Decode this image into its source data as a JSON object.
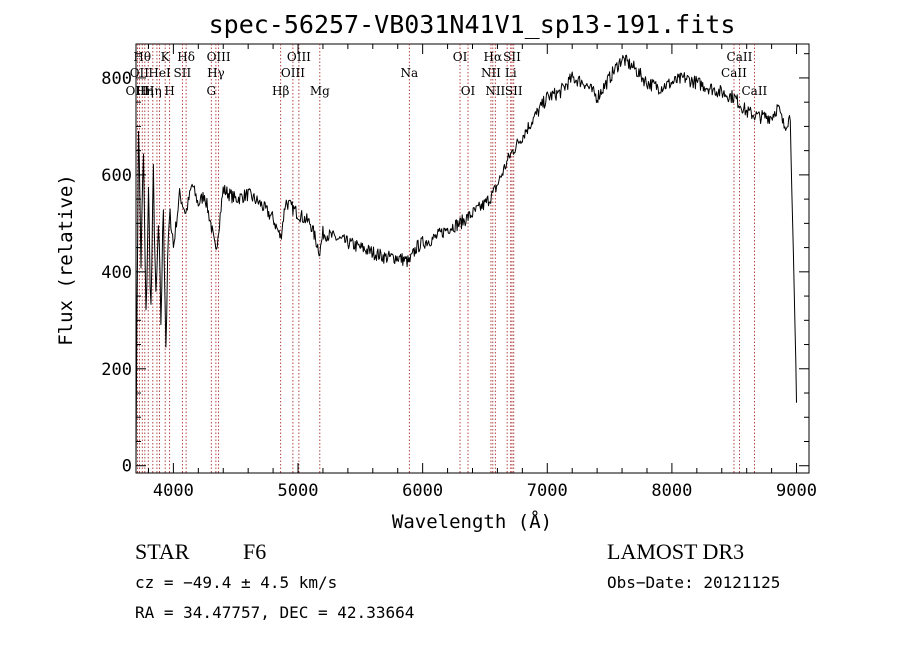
{
  "chart_data": {
    "type": "line",
    "title": "spec-56257-VB031N41V1_sp13-191.fits",
    "xlabel": "Wavelength (Å)",
    "ylabel": "Flux (relative)",
    "xlim": [
      3700,
      9100
    ],
    "ylim": [
      -15,
      870
    ],
    "xticks": [
      4000,
      5000,
      6000,
      7000,
      8000,
      9000
    ],
    "yticks": [
      0,
      200,
      400,
      600,
      800
    ],
    "line_color": "#000000",
    "marker_color": "#a01818",
    "series": [
      {
        "name": "flux",
        "x": [
          3700,
          3720,
          3740,
          3760,
          3780,
          3800,
          3820,
          3840,
          3860,
          3880,
          3900,
          3920,
          3940,
          3960,
          3980,
          4000,
          4050,
          4100,
          4150,
          4200,
          4250,
          4300,
          4340,
          4400,
          4500,
          4600,
          4700,
          4800,
          4861,
          4900,
          5000,
          5100,
          5175,
          5200,
          5300,
          5400,
          5500,
          5600,
          5700,
          5800,
          5893,
          5950,
          6000,
          6100,
          6200,
          6300,
          6400,
          6500,
          6563,
          6600,
          6650,
          6700,
          6800,
          6900,
          7000,
          7100,
          7200,
          7300,
          7400,
          7500,
          7600,
          7700,
          7800,
          7900,
          8000,
          8100,
          8200,
          8300,
          8400,
          8500,
          8600,
          8700,
          8800,
          8850,
          8900,
          8950,
          9000
        ],
        "values": [
          30,
          710,
          420,
          640,
          300,
          560,
          320,
          600,
          330,
          490,
          300,
          540,
          250,
          470,
          520,
          450,
          560,
          520,
          580,
          540,
          560,
          500,
          440,
          570,
          550,
          560,
          540,
          510,
          470,
          545,
          520,
          500,
          440,
          480,
          470,
          460,
          450,
          440,
          430,
          430,
          420,
          450,
          460,
          470,
          490,
          500,
          520,
          540,
          560,
          580,
          610,
          640,
          680,
          720,
          760,
          770,
          800,
          790,
          760,
          800,
          840,
          820,
          790,
          780,
          790,
          800,
          790,
          780,
          770,
          760,
          730,
          720,
          720,
          740,
          700,
          720,
          130
        ]
      }
    ],
    "lines": [
      {
        "wave": 3712,
        "label": "OIII",
        "row": 3
      },
      {
        "wave": 3727,
        "label": "OII",
        "row": 2
      },
      {
        "wave": 3750,
        "label": "Hθ",
        "row": 1
      },
      {
        "wave": 3771,
        "label": "Hη",
        "row": 3
      },
      {
        "wave": 3798,
        "label": "",
        "row": 0
      },
      {
        "wave": 3835,
        "label": "Hη",
        "row": 3
      },
      {
        "wave": 3868,
        "label": "",
        "row": 0
      },
      {
        "wave": 3889,
        "label": "HeI",
        "row": 2
      },
      {
        "wave": 3934,
        "label": "K",
        "row": 1
      },
      {
        "wave": 3970,
        "label": "H",
        "row": 3
      },
      {
        "wave": 4072,
        "label": "SII",
        "row": 2
      },
      {
        "wave": 4102,
        "label": "Hδ",
        "row": 1
      },
      {
        "wave": 4304,
        "label": "G",
        "row": 3
      },
      {
        "wave": 4341,
        "label": "Hγ",
        "row": 2
      },
      {
        "wave": 4363,
        "label": "OIII",
        "row": 1
      },
      {
        "wave": 4861,
        "label": "Hβ",
        "row": 3
      },
      {
        "wave": 4959,
        "label": "OIII",
        "row": 2
      },
      {
        "wave": 5007,
        "label": "OIII",
        "row": 1
      },
      {
        "wave": 5175,
        "label": "Mg",
        "row": 3
      },
      {
        "wave": 5893,
        "label": "Na",
        "row": 2
      },
      {
        "wave": 6300,
        "label": "OI",
        "row": 1
      },
      {
        "wave": 6364,
        "label": "OI",
        "row": 3
      },
      {
        "wave": 6548,
        "label": "NII",
        "row": 2
      },
      {
        "wave": 6563,
        "label": "Hα",
        "row": 1
      },
      {
        "wave": 6583,
        "label": "NII",
        "row": 3
      },
      {
        "wave": 6678,
        "label": "",
        "row": 0
      },
      {
        "wave": 6707,
        "label": "Li",
        "row": 2
      },
      {
        "wave": 6717,
        "label": "SII",
        "row": 1
      },
      {
        "wave": 6731,
        "label": "SII",
        "row": 3
      },
      {
        "wave": 8498,
        "label": "CaII",
        "row": 2
      },
      {
        "wave": 8542,
        "label": "CaII",
        "row": 1
      },
      {
        "wave": 8662,
        "label": "CaII",
        "row": 3
      }
    ]
  },
  "info": {
    "object_class": "STAR",
    "subclass": "F6",
    "survey": "LAMOST DR3",
    "redshift": "cz = −49.4 ± 4.5 km/s",
    "obs_date": "Obs−Date: 20121125",
    "coords": "RA =  34.47757, DEC =  42.33664"
  }
}
